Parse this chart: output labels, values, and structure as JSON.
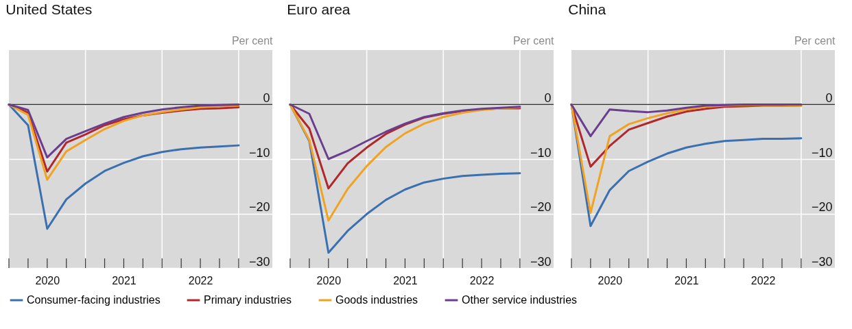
{
  "chart_data": [
    {
      "type": "line",
      "title": "United States",
      "ylabel": "Per cent",
      "x": [
        2020,
        2020.25,
        2020.5,
        2020.75,
        2021,
        2021.25,
        2021.5,
        2021.75,
        2022,
        2022.25,
        2022.5,
        2022.75,
        2023
      ],
      "series": [
        {
          "name": "Consumer-facing industries",
          "color": "#3a6fb0",
          "values": [
            0,
            -3.8,
            -22.8,
            -17.4,
            -14.5,
            -12.2,
            -10.7,
            -9.5,
            -8.7,
            -8.2,
            -7.9,
            -7.7,
            -7.5
          ]
        },
        {
          "name": "Primary industries",
          "color": "#b0282c",
          "values": [
            0,
            -1.5,
            -12.3,
            -7.0,
            -5.5,
            -3.8,
            -2.7,
            -2.0,
            -1.5,
            -1.1,
            -0.8,
            -0.7,
            -0.5
          ]
        },
        {
          "name": "Goods industries",
          "color": "#f0a223",
          "values": [
            0,
            -1.9,
            -13.8,
            -8.6,
            -6.5,
            -4.5,
            -3.0,
            -2.0,
            -1.4,
            -0.9,
            -0.5,
            -0.3,
            -0.2
          ]
        },
        {
          "name": "Other service industries",
          "color": "#6a3d8f",
          "values": [
            0,
            -1.0,
            -9.7,
            -6.3,
            -4.9,
            -3.5,
            -2.3,
            -1.5,
            -0.9,
            -0.5,
            -0.2,
            -0.1,
            0.0
          ]
        }
      ],
      "xlim": [
        2020,
        2023.44
      ],
      "ylim": [
        -30,
        10
      ],
      "xticks": [
        {
          "value": 2020,
          "label": null
        },
        {
          "value": 2020.25,
          "label": null
        },
        {
          "value": 2020.5,
          "label": "2020"
        },
        {
          "value": 2020.75,
          "label": null
        },
        {
          "value": 2021,
          "label": null
        },
        {
          "value": 2021.25,
          "label": null
        },
        {
          "value": 2021.5,
          "label": "2021"
        },
        {
          "value": 2021.75,
          "label": null
        },
        {
          "value": 2022,
          "label": null
        },
        {
          "value": 2022.25,
          "label": null
        },
        {
          "value": 2022.5,
          "label": "2022"
        },
        {
          "value": 2022.75,
          "label": null
        },
        {
          "value": 2023,
          "label": null
        }
      ],
      "yticks": [
        {
          "value": 0,
          "label": "0"
        },
        {
          "value": -10,
          "label": "−10"
        },
        {
          "value": -20,
          "label": "−20"
        },
        {
          "value": -30,
          "label": "−30"
        }
      ],
      "ref_lines": [
        {
          "axis": "y",
          "value": 0,
          "color": "#333333"
        }
      ],
      "grid": true,
      "legend": "bottom",
      "marker": "none",
      "line_style": "solid"
    },
    {
      "type": "line",
      "title": "Euro area",
      "ylabel": "Per cent",
      "x": [
        2020,
        2020.25,
        2020.5,
        2020.75,
        2021,
        2021.25,
        2021.5,
        2021.75,
        2022,
        2022.25,
        2022.5,
        2022.75,
        2023
      ],
      "series": [
        {
          "color": "#3a6fb0",
          "values": [
            0,
            -6.7,
            -27.2,
            -23.2,
            -20.1,
            -17.5,
            -15.6,
            -14.3,
            -13.6,
            -13.1,
            -12.9,
            -12.7,
            -12.6
          ]
        },
        {
          "color": "#b0282c",
          "values": [
            0,
            -4.4,
            -15.4,
            -10.8,
            -7.9,
            -5.4,
            -3.7,
            -2.4,
            -1.7,
            -1.2,
            -0.9,
            -0.7,
            -0.7
          ]
        },
        {
          "color": "#f0a223",
          "values": [
            0,
            -6.5,
            -21.3,
            -15.5,
            -11.3,
            -7.8,
            -5.3,
            -3.5,
            -2.3,
            -1.5,
            -1.0,
            -0.7,
            -0.5
          ]
        },
        {
          "color": "#6a3d8f",
          "values": [
            0,
            -1.7,
            -10.0,
            -8.5,
            -6.7,
            -5.0,
            -3.5,
            -2.3,
            -1.6,
            -1.1,
            -0.8,
            -0.6,
            -0.4
          ]
        }
      ],
      "xlim": [
        2020,
        2023.44
      ],
      "ylim": [
        -30,
        10
      ],
      "xticks": [
        {
          "value": 2020,
          "label": null
        },
        {
          "value": 2020.25,
          "label": null
        },
        {
          "value": 2020.5,
          "label": "2020"
        },
        {
          "value": 2020.75,
          "label": null
        },
        {
          "value": 2021,
          "label": null
        },
        {
          "value": 2021.25,
          "label": null
        },
        {
          "value": 2021.5,
          "label": "2021"
        },
        {
          "value": 2021.75,
          "label": null
        },
        {
          "value": 2022,
          "label": null
        },
        {
          "value": 2022.25,
          "label": null
        },
        {
          "value": 2022.5,
          "label": "2022"
        },
        {
          "value": 2022.75,
          "label": null
        },
        {
          "value": 2023,
          "label": null
        }
      ],
      "yticks": [
        {
          "value": 0,
          "label": "0"
        },
        {
          "value": -10,
          "label": "−10"
        },
        {
          "value": -20,
          "label": "−20"
        },
        {
          "value": -30,
          "label": "−30"
        }
      ],
      "ref_lines": [
        {
          "axis": "y",
          "value": 0,
          "color": "#333333"
        }
      ],
      "grid": true,
      "marker": "none",
      "line_style": "solid"
    },
    {
      "type": "line",
      "title": "China",
      "ylabel": "Per cent",
      "x": [
        2020,
        2020.25,
        2020.5,
        2020.75,
        2021,
        2021.25,
        2021.5,
        2021.75,
        2022,
        2022.25,
        2022.5,
        2022.75,
        2023
      ],
      "series": [
        {
          "color": "#3a6fb0",
          "values": [
            0,
            -22.3,
            -15.7,
            -12.2,
            -10.5,
            -9.0,
            -7.9,
            -7.2,
            -6.7,
            -6.5,
            -6.3,
            -6.3,
            -6.2
          ]
        },
        {
          "color": "#b0282c",
          "values": [
            0,
            -11.4,
            -7.6,
            -4.6,
            -3.4,
            -2.2,
            -1.3,
            -0.8,
            -0.4,
            -0.3,
            -0.2,
            -0.2,
            -0.2
          ]
        },
        {
          "color": "#f0a223",
          "values": [
            0,
            -19.9,
            -5.8,
            -3.6,
            -2.5,
            -1.6,
            -0.9,
            -0.4,
            -0.2,
            -0.1,
            -0.1,
            -0.1,
            -0.2
          ]
        },
        {
          "color": "#6a3d8f",
          "values": [
            0,
            -5.8,
            -0.9,
            -1.2,
            -1.4,
            -1.1,
            -0.6,
            -0.2,
            -0.1,
            0.0,
            0.0,
            0.0,
            0.0
          ]
        }
      ],
      "xlim": [
        2020,
        2023.44
      ],
      "ylim": [
        -30,
        10
      ],
      "xticks": [
        {
          "value": 2020,
          "label": null
        },
        {
          "value": 2020.25,
          "label": null
        },
        {
          "value": 2020.5,
          "label": "2020"
        },
        {
          "value": 2020.75,
          "label": null
        },
        {
          "value": 2021,
          "label": null
        },
        {
          "value": 2021.25,
          "label": null
        },
        {
          "value": 2021.5,
          "label": "2021"
        },
        {
          "value": 2021.75,
          "label": null
        },
        {
          "value": 2022,
          "label": null
        },
        {
          "value": 2022.25,
          "label": null
        },
        {
          "value": 2022.5,
          "label": "2022"
        },
        {
          "value": 2022.75,
          "label": null
        },
        {
          "value": 2023,
          "label": null
        }
      ],
      "yticks": [
        {
          "value": 0,
          "label": "0"
        },
        {
          "value": -10,
          "label": "−10"
        },
        {
          "value": -20,
          "label": "−20"
        },
        {
          "value": -30,
          "label": "−30"
        }
      ],
      "ref_lines": [
        {
          "axis": "y",
          "value": 0,
          "color": "#333333"
        }
      ],
      "grid": true,
      "marker": "none",
      "line_style": "solid"
    }
  ]
}
